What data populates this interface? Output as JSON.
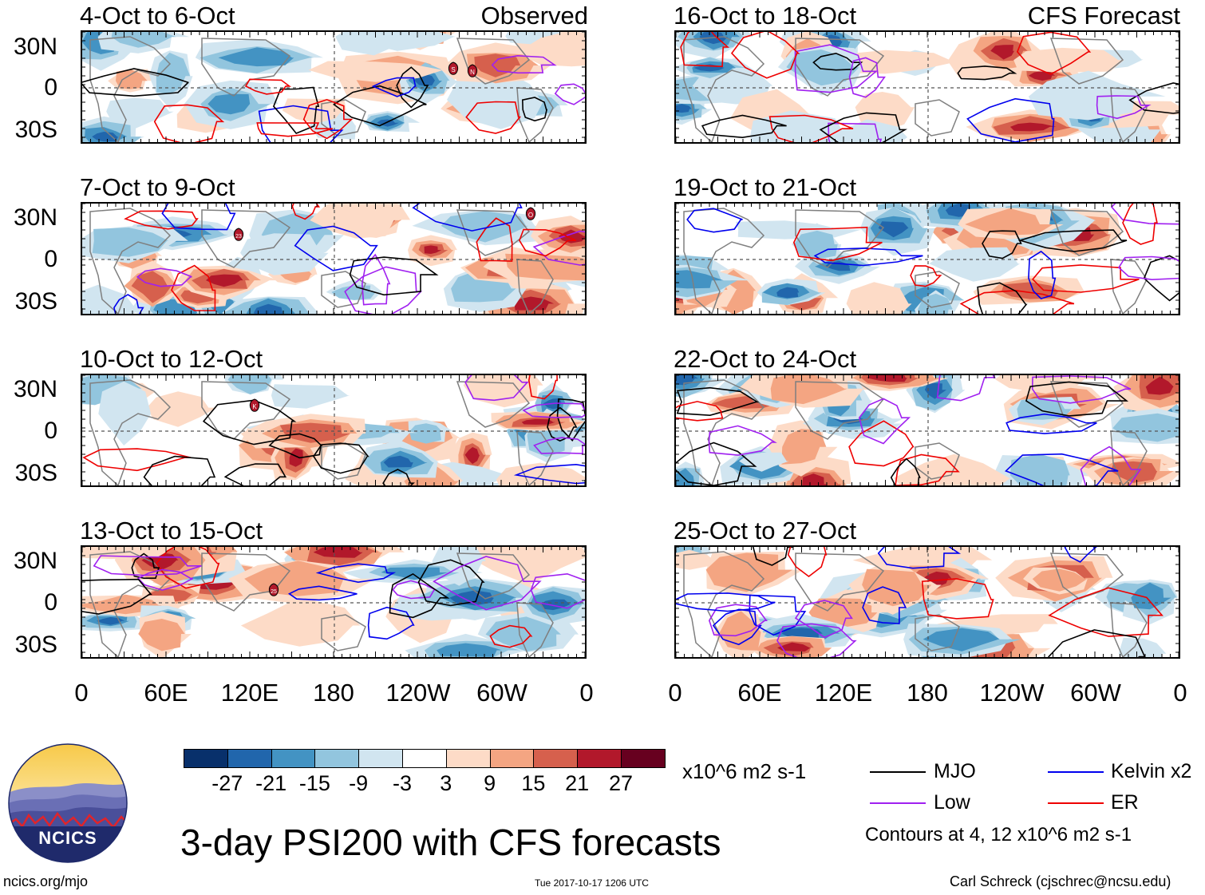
{
  "panels": [
    {
      "title": "4-Oct to 6-Oct",
      "tag": "Observed"
    },
    {
      "title": "7-Oct to 9-Oct",
      "tag": ""
    },
    {
      "title": "10-Oct to 12-Oct",
      "tag": ""
    },
    {
      "title": "13-Oct to 15-Oct",
      "tag": ""
    },
    {
      "title": "16-Oct to 18-Oct",
      "tag": "CFS Forecast"
    },
    {
      "title": "19-Oct to 21-Oct",
      "tag": ""
    },
    {
      "title": "22-Oct to 24-Oct",
      "tag": ""
    },
    {
      "title": "25-Oct to 27-Oct",
      "tag": ""
    }
  ],
  "y_ticks": [
    "30N",
    "0",
    "30S"
  ],
  "x_ticks": [
    "0",
    "60E",
    "120E",
    "180",
    "120W",
    "60W",
    "0"
  ],
  "storms": [
    {
      "panel": 0,
      "label": "S"
    },
    {
      "panel": 0,
      "label": "N"
    },
    {
      "panel": 1,
      "label": "23"
    },
    {
      "panel": 1,
      "label": "O"
    },
    {
      "panel": 2,
      "label": "K"
    },
    {
      "panel": 3,
      "label": "25"
    }
  ],
  "colorbar": {
    "labels": [
      "-27",
      "-21",
      "-15",
      "-9",
      "-3",
      "3",
      "9",
      "15",
      "21",
      "27"
    ],
    "colors": [
      "#08306b",
      "#2166ac",
      "#4393c3",
      "#92c5de",
      "#d1e5f0",
      "#ffffff",
      "#fddbc7",
      "#f4a582",
      "#d6604d",
      "#b2182b",
      "#67001f"
    ],
    "units": "x10^6 m2 s-1"
  },
  "legend": {
    "items": [
      {
        "label": "MJO",
        "color": "#000000"
      },
      {
        "label": "Kelvin x2",
        "color": "#0000ee"
      },
      {
        "label": "Low",
        "color": "#a020f0"
      },
      {
        "label": "ER",
        "color": "#ee0000"
      }
    ],
    "note": "Contours at 4, 12 x10^6 m2 s-1"
  },
  "logo": {
    "text": "NCICS"
  },
  "main_title": "3-day PSI200 with CFS forecasts",
  "footer": {
    "left": "ncics.org/mjo",
    "center": "Tue 2017-10-17 1206 UTC",
    "right": "Carl Schreck (cjschrec@ncsu.edu)"
  }
}
